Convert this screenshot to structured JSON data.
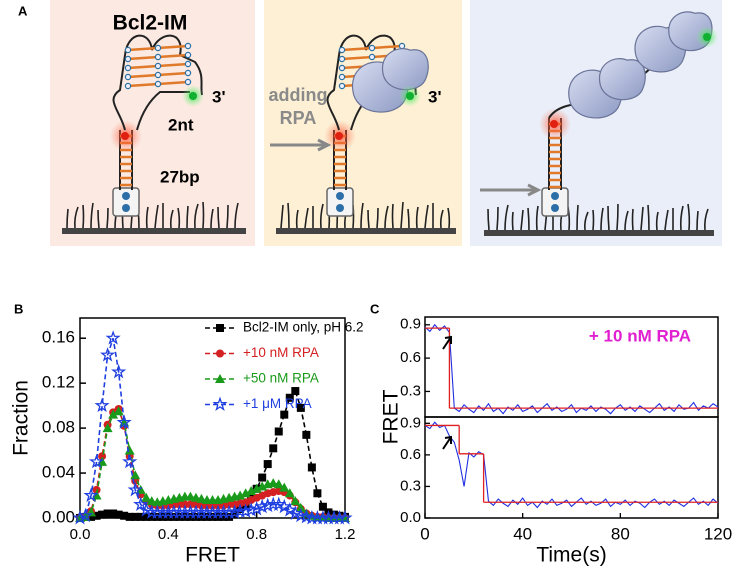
{
  "panel_labels": [
    "A",
    "B",
    "C"
  ],
  "panel_a": {
    "construct": "Bcl2-IM",
    "labels": [
      "3'",
      "2nt",
      "27bp"
    ],
    "step_label": [
      "adding",
      "RPA"
    ],
    "labels_2": [
      "3'"
    ]
  },
  "chart_data": [
    {
      "type": "line",
      "xlabel": "FRET",
      "ylabel": "Fraction",
      "x": [
        0,
        0.025,
        0.05,
        0.075,
        0.1,
        0.125,
        0.15,
        0.175,
        0.2,
        0.225,
        0.25,
        0.275,
        0.3,
        0.325,
        0.35,
        0.375,
        0.4,
        0.425,
        0.45,
        0.475,
        0.5,
        0.525,
        0.55,
        0.575,
        0.6,
        0.625,
        0.65,
        0.675,
        0.7,
        0.725,
        0.75,
        0.775,
        0.8,
        0.825,
        0.85,
        0.875,
        0.9,
        0.925,
        0.95,
        0.975,
        1.0,
        1.025,
        1.05,
        1.075,
        1.1,
        1.125,
        1.15,
        1.175,
        1.2
      ],
      "series": [
        {
          "name": "Bcl2-IM only, pH 6.2",
          "color": "#000000",
          "marker": "square",
          "values": [
            0,
            0.001,
            0.001,
            0.002,
            0.003,
            0.004,
            0.004,
            0.003,
            0.002,
            0.001,
            0.001,
            0.001,
            0.001,
            0.001,
            0.001,
            0.001,
            0.001,
            0.001,
            0.001,
            0.001,
            0.001,
            0.001,
            0.001,
            0.001,
            0.001,
            0.001,
            0.001,
            0.001,
            0.004,
            0.008,
            0.012,
            0.018,
            0.026,
            0.036,
            0.048,
            0.062,
            0.077,
            0.092,
            0.107,
            0.113,
            0.098,
            0.074,
            0.045,
            0.022,
            0.01,
            0.005,
            0.003,
            0.002,
            0.001
          ]
        },
        {
          "name": "+10 nM RPA",
          "color": "#d42020",
          "marker": "circle",
          "values": [
            0,
            0.001,
            0.006,
            0.025,
            0.055,
            0.083,
            0.094,
            0.097,
            0.082,
            0.055,
            0.033,
            0.021,
            0.015,
            0.012,
            0.011,
            0.011,
            0.011,
            0.012,
            0.012,
            0.012,
            0.012,
            0.012,
            0.011,
            0.011,
            0.011,
            0.011,
            0.011,
            0.012,
            0.012,
            0.013,
            0.014,
            0.016,
            0.018,
            0.02,
            0.022,
            0.023,
            0.024,
            0.023,
            0.02,
            0.014,
            0.008,
            0.004,
            0.002,
            0.001,
            0.001,
            0,
            0,
            0,
            0
          ]
        },
        {
          "name": "+50 nM RPA",
          "color": "#1a9a1a",
          "marker": "triangle",
          "values": [
            0,
            0.001,
            0.005,
            0.02,
            0.05,
            0.08,
            0.092,
            0.095,
            0.085,
            0.06,
            0.038,
            0.025,
            0.018,
            0.015,
            0.014,
            0.015,
            0.016,
            0.017,
            0.018,
            0.019,
            0.019,
            0.018,
            0.017,
            0.016,
            0.016,
            0.016,
            0.017,
            0.018,
            0.019,
            0.02,
            0.022,
            0.024,
            0.026,
            0.028,
            0.03,
            0.031,
            0.03,
            0.027,
            0.022,
            0.015,
            0.009,
            0.004,
            0.002,
            0.001,
            0.001,
            0,
            0,
            0,
            0
          ]
        },
        {
          "name": "+1 μM RPA",
          "color": "#1f3fe0",
          "marker": "star",
          "values": [
            0,
            0.002,
            0.02,
            0.05,
            0.1,
            0.145,
            0.16,
            0.13,
            0.085,
            0.05,
            0.025,
            0.012,
            0.007,
            0.005,
            0.005,
            0.005,
            0.005,
            0.005,
            0.005,
            0.005,
            0.005,
            0.005,
            0.005,
            0.005,
            0.005,
            0.005,
            0.005,
            0.005,
            0.005,
            0.006,
            0.006,
            0.007,
            0.008,
            0.01,
            0.011,
            0.012,
            0.012,
            0.01,
            0.007,
            0.004,
            0.002,
            0.001,
            0,
            0,
            0,
            0,
            0,
            0,
            0
          ]
        }
      ],
      "xlim": [
        0,
        1.2
      ],
      "xticks": [
        {
          "value": 0,
          "label": "0.0"
        },
        0.4,
        0.8,
        1.2
      ],
      "ylim": [
        0,
        0.178
      ],
      "yticks": [
        {
          "value": 0,
          "label": "0.00"
        },
        0.04,
        0.08,
        0.12,
        0.16
      ],
      "legend": "upper right"
    },
    {
      "type": "line",
      "ylabel": "FRET",
      "annotation": "+ 10 nM RPA",
      "x": [
        0,
        2,
        4,
        6,
        8,
        10,
        12,
        14,
        16,
        18,
        20,
        22,
        24,
        26,
        28,
        30,
        32,
        34,
        36,
        38,
        40,
        42,
        44,
        46,
        48,
        50,
        52,
        54,
        56,
        58,
        60,
        62,
        64,
        66,
        68,
        70,
        72,
        74,
        76,
        78,
        80,
        82,
        84,
        86,
        88,
        90,
        92,
        94,
        96,
        98,
        100,
        102,
        104,
        106,
        108,
        110,
        112,
        114,
        116,
        118,
        120
      ],
      "series": [
        {
          "color": "#1f2fe0",
          "values": [
            0.88,
            0.84,
            0.9,
            0.85,
            0.89,
            0.83,
            0.15,
            0.12,
            0.18,
            0.14,
            0.11,
            0.17,
            0.13,
            0.19,
            0.12,
            0.15,
            0.1,
            0.16,
            0.13,
            0.18,
            0.12,
            0.14,
            0.17,
            0.11,
            0.15,
            0.19,
            0.13,
            0.16,
            0.12,
            0.14,
            0.18,
            0.11,
            0.15,
            0.13,
            0.17,
            0.12,
            0.16,
            0.14,
            0.1,
            0.15,
            0.18,
            0.13,
            0.16,
            0.12,
            0.17,
            0.14,
            0.11,
            0.15,
            0.19,
            0.13,
            0.16,
            0.12,
            0.18,
            0.14,
            0.15,
            0.2,
            0.13,
            0.17,
            0.15,
            0.19,
            0.16
          ]
        }
      ],
      "fit_color": "#e02020",
      "fit_segments": [
        {
          "x": [
            0,
            10
          ],
          "value": 0.87
        },
        {
          "x": [
            10,
            120
          ],
          "value": 0.15
        }
      ],
      "xlim": [
        0,
        120
      ],
      "ylim": [
        0.07,
        0.97
      ],
      "yticks": [
        0.3,
        0.6,
        0.9
      ]
    },
    {
      "type": "line",
      "xlabel": "Time(s)",
      "x": [
        0,
        2,
        4,
        6,
        8,
        10,
        12,
        14,
        16,
        18,
        20,
        22,
        24,
        26,
        28,
        30,
        32,
        34,
        36,
        38,
        40,
        42,
        44,
        46,
        48,
        50,
        52,
        54,
        56,
        58,
        60,
        62,
        64,
        66,
        68,
        70,
        72,
        74,
        76,
        78,
        80,
        82,
        84,
        86,
        88,
        90,
        92,
        94,
        96,
        98,
        100,
        102,
        104,
        106,
        108,
        110,
        112,
        114,
        116,
        118,
        120
      ],
      "series": [
        {
          "color": "#1f2fe0",
          "values": [
            0.88,
            0.85,
            0.91,
            0.86,
            0.88,
            0.78,
            0.72,
            0.55,
            0.3,
            0.62,
            0.58,
            0.63,
            0.6,
            0.16,
            0.12,
            0.18,
            0.14,
            0.11,
            0.17,
            0.13,
            0.19,
            0.12,
            0.15,
            0.1,
            0.16,
            0.13,
            0.18,
            0.12,
            0.14,
            0.17,
            0.11,
            0.15,
            0.19,
            0.13,
            0.16,
            0.12,
            0.14,
            0.18,
            0.11,
            0.15,
            0.13,
            0.17,
            0.12,
            0.16,
            0.14,
            0.1,
            0.15,
            0.18,
            0.13,
            0.16,
            0.12,
            0.17,
            0.14,
            0.11,
            0.15,
            0.19,
            0.13,
            0.16,
            0.12,
            0.18,
            0.14
          ]
        }
      ],
      "fit_color": "#e02020",
      "fit_segments": [
        {
          "x": [
            0,
            14
          ],
          "value": 0.88
        },
        {
          "x": [
            14,
            24
          ],
          "value": 0.61
        },
        {
          "x": [
            24,
            120
          ],
          "value": 0.15
        }
      ],
      "xlim": [
        0,
        120
      ],
      "xticks": [
        0,
        40,
        80,
        120
      ],
      "ylim": [
        0,
        0.96
      ],
      "yticks": [
        {
          "value": 0,
          "label": "0.0"
        },
        0.3,
        0.6,
        0.9
      ]
    }
  ]
}
